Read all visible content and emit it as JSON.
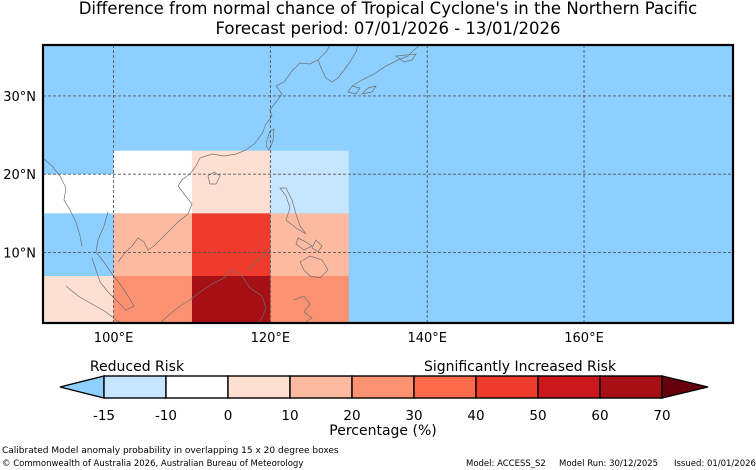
{
  "title": {
    "line1": "Difference from normal chance of Tropical Cyclone's in the Northern Pacific",
    "line2": "Forecast period: 07/01/2026 - 13/01/2026"
  },
  "map": {
    "region": "Northern Pacific",
    "background_color": "#8dcfff",
    "lat_gridlines": [
      "10°N",
      "20°N",
      "30°N"
    ],
    "lon_gridlines": [
      "100°E",
      "120°E",
      "140°E",
      "160°E"
    ],
    "extent": {
      "lon_min": 91,
      "lon_max": 179,
      "lat_min": 1,
      "lat_max": 36.5
    },
    "cells": [
      {
        "lon": [
          91,
          100
        ],
        "lat": [
          15,
          20
        ],
        "color": "#ffffff"
      },
      {
        "lon": [
          91,
          100
        ],
        "lat": [
          1,
          7
        ],
        "color": "#fee0d2"
      },
      {
        "lon": [
          100,
          110
        ],
        "lat": [
          15,
          23
        ],
        "color": "#ffffff"
      },
      {
        "lon": [
          100,
          110
        ],
        "lat": [
          7,
          15
        ],
        "color": "#fcbba1"
      },
      {
        "lon": [
          100,
          110
        ],
        "lat": [
          1,
          7
        ],
        "color": "#fc9272"
      },
      {
        "lon": [
          110,
          120
        ],
        "lat": [
          15,
          23
        ],
        "color": "#fee0d2"
      },
      {
        "lon": [
          110,
          120
        ],
        "lat": [
          7,
          15
        ],
        "color": "#ef3b2c"
      },
      {
        "lon": [
          110,
          120
        ],
        "lat": [
          1,
          7
        ],
        "color": "#a50f15"
      },
      {
        "lon": [
          120,
          130
        ],
        "lat": [
          15,
          23
        ],
        "color": "#c6e6ff"
      },
      {
        "lon": [
          120,
          130
        ],
        "lat": [
          7,
          15
        ],
        "color": "#fcbba1"
      },
      {
        "lon": [
          120,
          130
        ],
        "lat": [
          1,
          7
        ],
        "color": "#fc9272"
      }
    ]
  },
  "colorbar": {
    "label_reduced": "Reduced Risk",
    "label_increased": "Significantly Increased Risk",
    "axis_label": "Percentage (%)",
    "ticks": [
      "-15",
      "-10",
      "0",
      "10",
      "20",
      "30",
      "40",
      "50",
      "60",
      "70"
    ],
    "under_color": "#8dcfff",
    "over_color": "#67000d",
    "colors": [
      "#c6e6ff",
      "#ffffff",
      "#fee0d2",
      "#fcbba1",
      "#fc9272",
      "#fb6a4a",
      "#ef3b2c",
      "#cb181d",
      "#a50f15"
    ]
  },
  "footer": {
    "caption": "Calibrated Model anomaly probability in overlapping 15 x 20 degree boxes",
    "copyright": "© Commonwealth of Australia 2026, Australian Bureau of Meteorology",
    "model": "Model: ACCESS_S2",
    "model_run": "Model Run: 30/12/2025",
    "issued": "Issued: 01/01/2026"
  }
}
